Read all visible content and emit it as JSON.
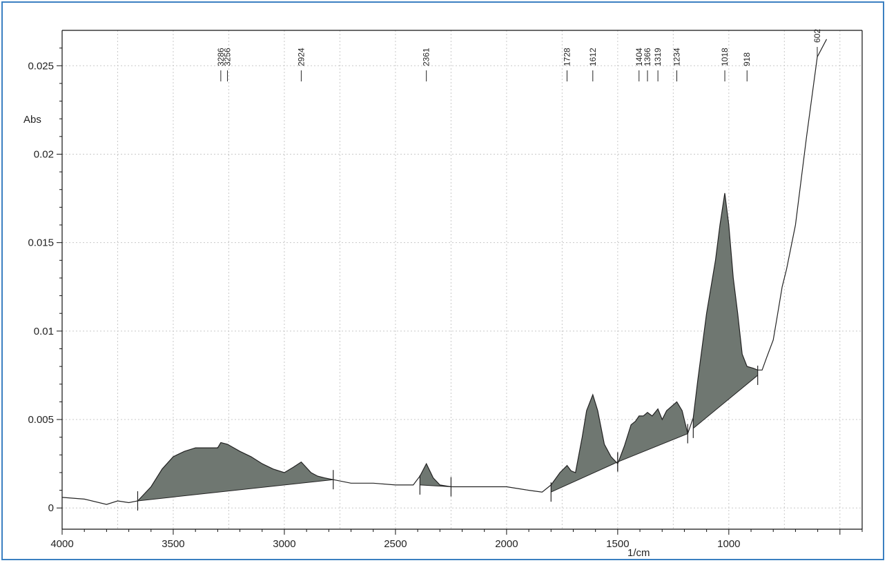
{
  "chart_data": {
    "type": "area",
    "ylabel": "Abs",
    "xlabel": "1/cm",
    "xlim": [
      4000,
      400
    ],
    "ylim": [
      -0.0012,
      0.027
    ],
    "x_ticks": [
      4000,
      3500,
      3000,
      2500,
      2000,
      1500,
      1000
    ],
    "x_tick_labels": [
      "4000",
      "3500",
      "3000",
      "2500",
      "2000",
      "1500",
      "1000"
    ],
    "y_ticks": [
      0,
      0.005,
      0.01,
      0.015,
      0.02,
      0.025
    ],
    "y_tick_labels": [
      "0",
      "0.005",
      "0.01",
      "0.015",
      "0.02",
      "0.025"
    ],
    "grid": true,
    "peak_labels": [
      "3286",
      "3256",
      "2924",
      "2361",
      "1728",
      "1612",
      "1404",
      "1366",
      "1319",
      "1234",
      "1018",
      "918",
      "602"
    ],
    "series": [
      {
        "x": [
          4000,
          3900,
          3800,
          3750,
          3700,
          3660,
          3600,
          3550,
          3500,
          3450,
          3400,
          3350,
          3300,
          3286,
          3256,
          3200,
          3150,
          3100,
          3050,
          3000,
          2960,
          2924,
          2880,
          2850,
          2820,
          2780,
          2700,
          2600,
          2500,
          2420,
          2390,
          2361,
          2330,
          2300,
          2250,
          2200,
          2100,
          2000,
          1900,
          1840,
          1800,
          1760,
          1728,
          1710,
          1690,
          1660,
          1640,
          1612,
          1590,
          1560,
          1530,
          1500,
          1470,
          1440,
          1420,
          1404,
          1385,
          1366,
          1345,
          1319,
          1300,
          1280,
          1234,
          1210,
          1185,
          1160,
          1140,
          1100,
          1060,
          1040,
          1018,
          1000,
          980,
          960,
          940,
          918,
          890,
          870,
          850,
          830,
          800,
          780,
          760,
          740,
          700,
          650,
          602,
          560
        ],
        "y": [
          0.0006,
          0.0005,
          0.0002,
          0.0004,
          0.0003,
          0.0004,
          0.0012,
          0.0022,
          0.0029,
          0.0032,
          0.0034,
          0.0034,
          0.0034,
          0.0037,
          0.0036,
          0.0032,
          0.0029,
          0.0025,
          0.0022,
          0.002,
          0.0023,
          0.0026,
          0.002,
          0.0018,
          0.0017,
          0.0016,
          0.0014,
          0.0014,
          0.0013,
          0.0013,
          0.0018,
          0.0025,
          0.0017,
          0.0013,
          0.0012,
          0.0012,
          0.0012,
          0.0012,
          0.001,
          0.0009,
          0.0013,
          0.002,
          0.0024,
          0.0021,
          0.002,
          0.004,
          0.0055,
          0.0064,
          0.0055,
          0.0036,
          0.0029,
          0.0025,
          0.0035,
          0.0047,
          0.0049,
          0.0052,
          0.0052,
          0.0054,
          0.0052,
          0.0056,
          0.005,
          0.0055,
          0.006,
          0.0055,
          0.0042,
          0.0051,
          0.0072,
          0.011,
          0.014,
          0.016,
          0.0178,
          0.016,
          0.013,
          0.011,
          0.0087,
          0.008,
          0.0079,
          0.0078,
          0.0078,
          0.0085,
          0.0095,
          0.011,
          0.0125,
          0.0135,
          0.016,
          0.021,
          0.0255,
          0.0265
        ]
      }
    ],
    "shaded_regions": [
      {
        "from": 3660,
        "to": 2780,
        "base": [
          0.0004,
          0.0016
        ]
      },
      {
        "from": 2390,
        "to": 2250,
        "base": [
          0.0013,
          0.0012
        ]
      },
      {
        "from": 1800,
        "to": 1500,
        "base": [
          0.0009,
          0.0026
        ]
      },
      {
        "from": 1500,
        "to": 1185,
        "base": [
          0.0026,
          0.0042
        ]
      },
      {
        "from": 1160,
        "to": 870,
        "base": [
          0.0045,
          0.0075
        ]
      }
    ]
  }
}
